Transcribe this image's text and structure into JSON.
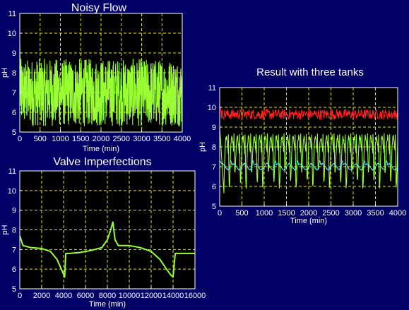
{
  "colors": {
    "background": "#000066",
    "plot_bg": "#000000",
    "grid": "#e8e800",
    "green": "#99ff33",
    "red": "#ff2020",
    "cyan": "#55e6f0",
    "text": "#ffffff"
  },
  "chart_data": [
    {
      "id": "noisy",
      "type": "line",
      "title": "Noisy Flow",
      "xlabel": "Time (min)",
      "ylabel": "pH",
      "xlim": [
        0,
        4000
      ],
      "ylim": [
        5,
        11
      ],
      "xticks": [
        "0",
        "500",
        "1000",
        "1500",
        "2000",
        "2500",
        "3000",
        "3500",
        "4000"
      ],
      "yticks": [
        "5",
        "6",
        "7",
        "8",
        "9",
        "10",
        "11"
      ],
      "grid": true,
      "series": [
        {
          "color": "#99ff33",
          "kind": "noise",
          "start": 9.5,
          "low": 5.3,
          "high": 8.7,
          "mid": 7.0,
          "count": 800
        }
      ]
    },
    {
      "id": "valve",
      "type": "line",
      "title": "Valve Imperfections",
      "xlabel": "Time (min)",
      "ylabel": "pH",
      "xlim": [
        0,
        16000
      ],
      "ylim": [
        5,
        11
      ],
      "xticks": [
        "0",
        "2000",
        "4000",
        "6000",
        "8000",
        "10000",
        "12000",
        "14000",
        "16000"
      ],
      "yticks": [
        "5",
        "6",
        "7",
        "8",
        "9",
        "10",
        "11"
      ],
      "grid": true,
      "series": [
        {
          "color": "#99ff33",
          "x": [
            0,
            300,
            1000,
            2000,
            2800,
            3400,
            3800,
            4100,
            4200,
            4500,
            5500,
            6500,
            7500,
            8000,
            8300,
            8500,
            8700,
            9000,
            9300,
            10000,
            11000,
            12000,
            12800,
            13400,
            13800,
            14000,
            14200,
            14500,
            16000
          ],
          "y": [
            7.7,
            7.2,
            7.1,
            7.05,
            6.9,
            6.5,
            6.0,
            5.6,
            6.8,
            6.8,
            6.85,
            6.95,
            7.1,
            7.5,
            8.0,
            8.4,
            7.5,
            7.2,
            7.2,
            7.2,
            7.1,
            6.9,
            6.5,
            6.0,
            5.7,
            5.6,
            6.8,
            6.8,
            6.8
          ]
        }
      ]
    },
    {
      "id": "result",
      "type": "line",
      "title": "Result with three tanks",
      "xlabel": "Time (min)",
      "ylabel": "pH",
      "xlim": [
        0,
        4000
      ],
      "ylim": [
        5,
        11
      ],
      "xticks": [
        "0",
        "500",
        "1000",
        "1500",
        "2000",
        "2500",
        "3000",
        "3500",
        "4000"
      ],
      "yticks": [
        "5",
        "6",
        "7",
        "8",
        "9",
        "10",
        "11"
      ],
      "grid": true,
      "series": [
        {
          "color": "#ff2020",
          "kind": "band",
          "start": 10.1,
          "mid": 9.65,
          "amp": 0.25,
          "count": 400
        },
        {
          "color": "#99ff33",
          "kind": "spiky",
          "mid": 8.1,
          "high": 8.8,
          "low": 6.0,
          "period": 125
        },
        {
          "color": "#55e6f0",
          "kind": "wave",
          "mid": 7.0,
          "amp": 0.15,
          "period": 250,
          "bumps": 7.3
        }
      ]
    }
  ]
}
